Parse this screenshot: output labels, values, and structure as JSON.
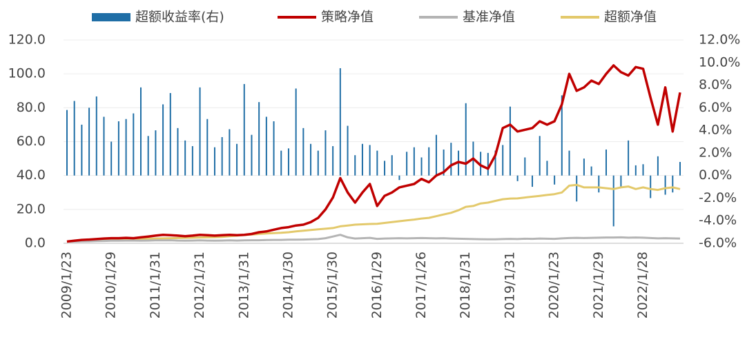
{
  "chart_data": {
    "type": "combo",
    "categories": [
      "2009/1/23",
      null,
      null,
      null,
      null,
      null,
      "2010/1/29",
      null,
      null,
      null,
      null,
      null,
      "2011/1/31",
      null,
      null,
      null,
      null,
      null,
      "2012/1/31",
      null,
      null,
      null,
      null,
      null,
      "2013/1/31",
      null,
      null,
      null,
      null,
      null,
      "2014/1/30",
      null,
      null,
      null,
      null,
      null,
      "2015/1/30",
      null,
      null,
      null,
      null,
      null,
      "2016/1/29",
      null,
      null,
      null,
      null,
      null,
      "2017/1/26",
      null,
      null,
      null,
      null,
      null,
      "2018/1/31",
      null,
      null,
      null,
      null,
      null,
      "2019/1/31",
      null,
      null,
      null,
      null,
      null,
      "2020/1/23",
      null,
      null,
      null,
      null,
      null,
      "2021/1/29",
      null,
      null,
      null,
      null,
      null,
      "2022/1/28",
      null,
      null,
      null,
      null,
      null
    ],
    "series": [
      {
        "name": "超额收益率(右)",
        "type": "bar",
        "axis": "y2",
        "color": "#1f6ea6",
        "values": [
          5.8,
          6.6,
          4.5,
          6,
          7,
          5.2,
          3,
          4.8,
          5,
          5.5,
          7.8,
          3.5,
          4,
          6.3,
          7.3,
          4.2,
          3.1,
          2.6,
          7.8,
          5,
          2.5,
          3.4,
          4.1,
          2.8,
          8.1,
          3.6,
          6.5,
          5.2,
          4.8,
          2.2,
          2.4,
          7.7,
          4.2,
          2.8,
          2.2,
          4,
          2.6,
          9.5,
          4.4,
          1.8,
          2.8,
          2.7,
          2.2,
          1.3,
          1.8,
          -0.4,
          2.1,
          2.5,
          1.6,
          2.5,
          3.6,
          2.3,
          2.9,
          2.2,
          6.4,
          3,
          2.1,
          2,
          2.2,
          2.7,
          6.1,
          -0.5,
          1.6,
          -1.0,
          3.5,
          1.3,
          -0.8,
          7.1,
          2.2,
          -2.3,
          1.5,
          0.8,
          -1.5,
          2.3,
          -4.5,
          -1.0,
          3.1,
          0.9,
          1.0,
          -2.0,
          1.7,
          -1.7,
          -1.5,
          1.2
        ]
      },
      {
        "name": "策略净值",
        "type": "line",
        "color": "#c00000",
        "values": [
          1,
          1.5,
          2,
          2.2,
          2.5,
          2.8,
          3,
          3,
          3.2,
          3,
          3.5,
          4,
          4.5,
          5,
          4.8,
          4.5,
          4.2,
          4.5,
          5,
          4.8,
          4.5,
          4.8,
          5,
          4.8,
          5,
          5.5,
          6.5,
          7,
          8,
          9,
          9.5,
          10.5,
          11,
          12.5,
          15,
          20,
          27,
          38.5,
          30,
          24,
          30,
          35,
          22,
          28,
          30,
          33,
          34,
          35,
          38,
          36,
          40,
          42,
          46,
          48,
          47,
          50,
          46,
          44,
          52,
          68,
          70,
          66,
          67,
          68,
          72,
          70,
          72,
          82,
          100,
          90,
          92,
          96,
          94,
          100,
          105,
          101,
          99,
          104,
          103,
          86,
          70,
          92,
          66,
          89
        ]
      },
      {
        "name": "基准净值",
        "type": "line",
        "color": "#b4b4b4",
        "values": [
          1,
          1,
          1.1,
          1.2,
          1.3,
          1.4,
          1.5,
          1.5,
          1.6,
          1.6,
          1.5,
          1.6,
          1.7,
          1.7,
          1.8,
          1.6,
          1.5,
          1.6,
          1.7,
          1.6,
          1.5,
          1.6,
          1.7,
          1.6,
          1.7,
          1.8,
          1.8,
          1.9,
          2,
          2,
          2.1,
          2.1,
          2.2,
          2.3,
          2.5,
          3,
          4,
          5,
          3.5,
          2.8,
          3,
          3.2,
          2.6,
          2.8,
          2.9,
          3,
          2.9,
          3,
          3.1,
          3,
          2.9,
          3,
          2.8,
          2.7,
          2.6,
          2.5,
          2.4,
          2.3,
          2.3,
          2.5,
          2.6,
          2.5,
          2.7,
          2.6,
          2.8,
          2.7,
          2.6,
          2.9,
          3.1,
          3.2,
          3.1,
          3.2,
          3.3,
          3.4,
          3.4,
          3.5,
          3.3,
          3.4,
          3.3,
          3.1,
          2.9,
          3,
          2.9,
          2.8
        ]
      },
      {
        "name": "超额净值",
        "type": "line",
        "color": "#e3c96b",
        "values": [
          1,
          1.2,
          1.4,
          1.6,
          1.8,
          2,
          2.2,
          2.3,
          2.4,
          2.5,
          2.6,
          2.7,
          2.8,
          2.9,
          3,
          3.1,
          3.2,
          3.3,
          3.4,
          3.5,
          3.6,
          3.8,
          4.2,
          4.5,
          4.9,
          5.2,
          5.5,
          5.8,
          6,
          6.2,
          6.5,
          7,
          7.4,
          7.8,
          8.2,
          8.6,
          9,
          10,
          10.5,
          11,
          11.2,
          11.4,
          11.5,
          12,
          12.5,
          13,
          13.5,
          14,
          14.6,
          15,
          16,
          17,
          18,
          19.5,
          21.5,
          22,
          23.5,
          24,
          25,
          26,
          26.4,
          26.5,
          27,
          27.5,
          28,
          28.5,
          29,
          30,
          34,
          34.5,
          33,
          33,
          33,
          32.5,
          32,
          33,
          33.5,
          32,
          33,
          32,
          31.5,
          32.5,
          33,
          32
        ]
      }
    ],
    "ylim": [
      0,
      120
    ],
    "yticks": [
      {
        "value": 0,
        "label": "0.0"
      },
      {
        "value": 20,
        "label": "20.0"
      },
      {
        "value": 40,
        "label": "40.0"
      },
      {
        "value": 60,
        "label": "60.0"
      },
      {
        "value": 80,
        "label": "80.0"
      },
      {
        "value": 100,
        "label": "100.0"
      },
      {
        "value": 120,
        "label": "120.0"
      }
    ],
    "y2lim": [
      -6,
      12
    ],
    "y2ticks": [
      {
        "value": -6,
        "label": "-6.0%"
      },
      {
        "value": -4,
        "label": "-4.0%"
      },
      {
        "value": -2,
        "label": "-2.0%"
      },
      {
        "value": 0,
        "label": "0.0%"
      },
      {
        "value": 2,
        "label": "2.0%"
      },
      {
        "value": 4,
        "label": "4.0%"
      },
      {
        "value": 6,
        "label": "6.0%"
      },
      {
        "value": 8,
        "label": "8.0%"
      },
      {
        "value": 10,
        "label": "10.0%"
      },
      {
        "value": 12,
        "label": "12.0%"
      }
    ],
    "grid": true,
    "legend": "top"
  }
}
